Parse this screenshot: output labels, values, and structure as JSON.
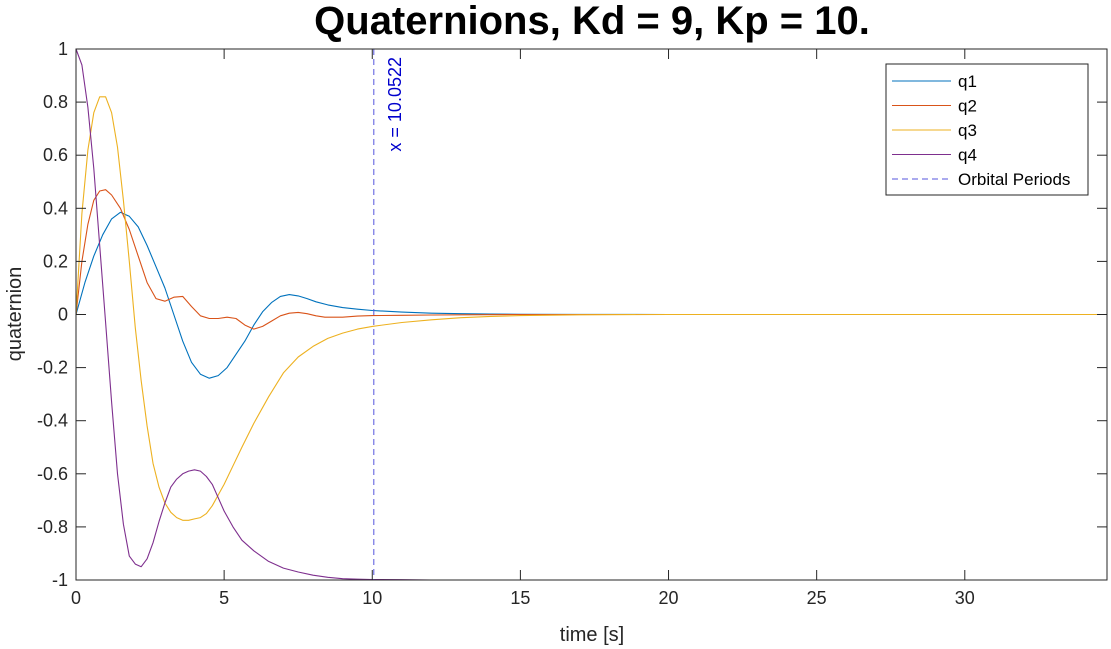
{
  "chart_data": {
    "type": "line",
    "title": "Quaternions, Kd = 9, Kp = 10.",
    "xlabel": "time [s]",
    "ylabel": "quaternion",
    "xlim": [
      0,
      34.8
    ],
    "ylim": [
      -1,
      1
    ],
    "xticks": [
      0,
      5,
      10,
      15,
      20,
      25,
      30
    ],
    "xtick_labels": [
      "0",
      "5",
      "10",
      "15",
      "20",
      "25",
      "30"
    ],
    "yticks": [
      -1,
      -0.8,
      -0.6,
      -0.4,
      -0.2,
      0,
      0.2,
      0.4,
      0.6,
      0.8,
      1
    ],
    "ytick_labels": [
      "-1",
      "-0.8",
      "-0.6",
      "-0.4",
      "-0.2",
      "0",
      "0.2",
      "0.4",
      "0.6",
      "0.8",
      "1"
    ],
    "grid": false,
    "legend_position": "top-right",
    "series": [
      {
        "name": "q1",
        "color": "#0072bd",
        "x": [
          0,
          0.3,
          0.6,
          0.9,
          1.2,
          1.5,
          1.8,
          2.1,
          2.4,
          2.7,
          3.0,
          3.3,
          3.6,
          3.9,
          4.2,
          4.5,
          4.8,
          5.1,
          5.4,
          5.7,
          6.0,
          6.3,
          6.6,
          6.9,
          7.2,
          7.5,
          7.8,
          8.1,
          8.5,
          9.0,
          9.5,
          10,
          11,
          12,
          13,
          14,
          15,
          17,
          20,
          25,
          30,
          34.8
        ],
        "y": [
          0.0,
          0.12,
          0.22,
          0.3,
          0.36,
          0.385,
          0.37,
          0.33,
          0.26,
          0.18,
          0.1,
          0.0,
          -0.1,
          -0.18,
          -0.225,
          -0.24,
          -0.23,
          -0.2,
          -0.15,
          -0.1,
          -0.04,
          0.01,
          0.045,
          0.068,
          0.075,
          0.07,
          0.06,
          0.048,
          0.036,
          0.026,
          0.02,
          0.015,
          0.009,
          0.005,
          0.003,
          0.0015,
          0.0008,
          0.0002,
          0.0,
          0.0,
          0.0,
          0.0
        ]
      },
      {
        "name": "q2",
        "color": "#d95319",
        "x": [
          0,
          0.2,
          0.4,
          0.6,
          0.8,
          1.0,
          1.2,
          1.5,
          1.8,
          2.1,
          2.4,
          2.7,
          3.0,
          3.3,
          3.6,
          3.9,
          4.2,
          4.5,
          4.8,
          5.1,
          5.4,
          5.7,
          6.0,
          6.3,
          6.6,
          6.9,
          7.2,
          7.5,
          7.8,
          8.1,
          8.4,
          9.0,
          9.5,
          10,
          11,
          12,
          13,
          15,
          17,
          20,
          25,
          30,
          34.8
        ],
        "y": [
          0.0,
          0.2,
          0.34,
          0.43,
          0.465,
          0.47,
          0.45,
          0.4,
          0.32,
          0.22,
          0.12,
          0.06,
          0.05,
          0.065,
          0.068,
          0.03,
          -0.005,
          -0.015,
          -0.015,
          -0.01,
          -0.015,
          -0.04,
          -0.055,
          -0.045,
          -0.025,
          -0.005,
          0.005,
          0.008,
          0.003,
          -0.005,
          -0.01,
          -0.01,
          -0.006,
          -0.004,
          -0.003,
          -0.002,
          -0.001,
          0.0,
          0.0,
          0.0,
          0.0,
          0.0,
          0.0
        ]
      },
      {
        "name": "q3",
        "color": "#edb120",
        "x": [
          0,
          0.2,
          0.4,
          0.6,
          0.8,
          1.0,
          1.2,
          1.4,
          1.6,
          1.8,
          2.0,
          2.2,
          2.4,
          2.6,
          2.8,
          3.0,
          3.2,
          3.4,
          3.6,
          3.8,
          4.0,
          4.2,
          4.4,
          4.6,
          4.8,
          5.0,
          5.3,
          5.6,
          6.0,
          6.5,
          7.0,
          7.5,
          8.0,
          8.5,
          9.0,
          9.5,
          10,
          11,
          12,
          13,
          14,
          15,
          17,
          20,
          25,
          30,
          34.8
        ],
        "y": [
          0.0,
          0.38,
          0.62,
          0.76,
          0.82,
          0.82,
          0.76,
          0.63,
          0.43,
          0.2,
          -0.05,
          -0.25,
          -0.42,
          -0.56,
          -0.65,
          -0.71,
          -0.745,
          -0.765,
          -0.775,
          -0.775,
          -0.77,
          -0.765,
          -0.75,
          -0.72,
          -0.68,
          -0.64,
          -0.57,
          -0.5,
          -0.41,
          -0.31,
          -0.22,
          -0.16,
          -0.12,
          -0.09,
          -0.07,
          -0.055,
          -0.045,
          -0.03,
          -0.02,
          -0.012,
          -0.007,
          -0.004,
          -0.001,
          0.0,
          0.0,
          0.0,
          0.0
        ]
      },
      {
        "name": "q4",
        "color": "#7e2f8e",
        "x": [
          0,
          0.2,
          0.4,
          0.6,
          0.8,
          1.0,
          1.2,
          1.4,
          1.6,
          1.8,
          2.0,
          2.2,
          2.4,
          2.6,
          2.8,
          3.0,
          3.2,
          3.4,
          3.6,
          3.8,
          4.0,
          4.2,
          4.4,
          4.6,
          4.8,
          5.0,
          5.3,
          5.6,
          6.0,
          6.5,
          7.0,
          7.5,
          8.0,
          8.5,
          9.0,
          9.5,
          10,
          11,
          12,
          13,
          15,
          20,
          25,
          30,
          34.8
        ],
        "y": [
          1.0,
          0.94,
          0.78,
          0.55,
          0.26,
          -0.03,
          -0.33,
          -0.6,
          -0.79,
          -0.91,
          -0.94,
          -0.95,
          -0.92,
          -0.86,
          -0.78,
          -0.71,
          -0.65,
          -0.62,
          -0.6,
          -0.59,
          -0.585,
          -0.59,
          -0.61,
          -0.64,
          -0.69,
          -0.74,
          -0.8,
          -0.85,
          -0.89,
          -0.93,
          -0.955,
          -0.97,
          -0.982,
          -0.99,
          -0.995,
          -0.997,
          -0.998,
          -0.999,
          -1.0,
          -1.0,
          -1.0,
          -1.0,
          -1.0,
          -1.0,
          -1.0
        ]
      }
    ],
    "vertical_line": {
      "name": "Orbital Periods",
      "x": 10.0522,
      "label": "x = 10.0522",
      "color": "#5555dd",
      "style": "dashed"
    }
  }
}
